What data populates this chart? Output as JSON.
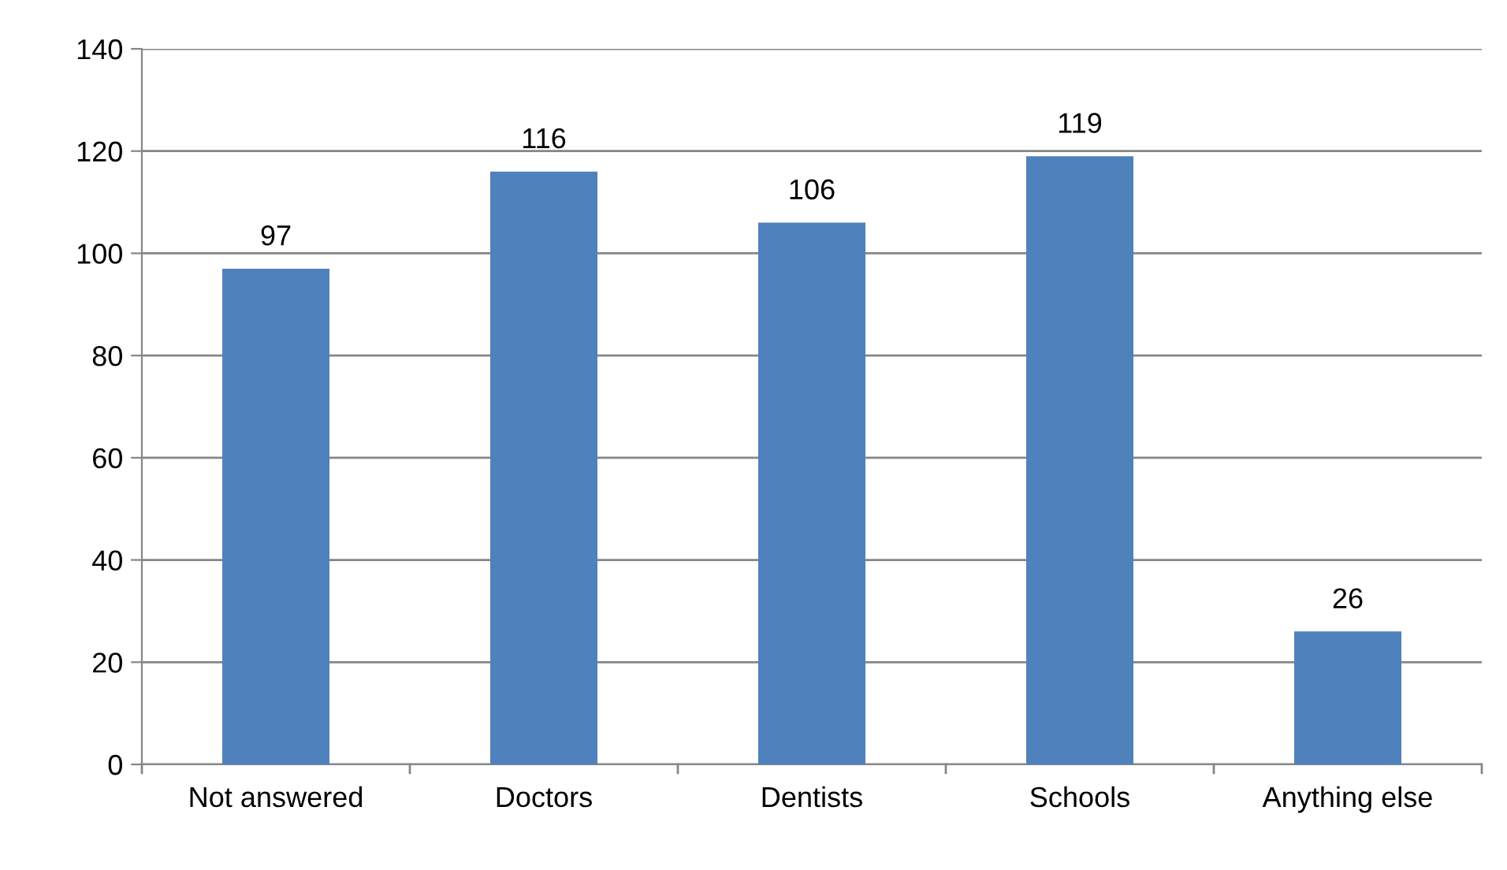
{
  "chart_data": {
    "type": "bar",
    "categories": [
      "Not answered",
      "Doctors",
      "Dentists",
      "Schools",
      "Anything else"
    ],
    "values": [
      97,
      116,
      106,
      119,
      26
    ],
    "color": "#4f81bd",
    "ylim": [
      0,
      140
    ],
    "yticks": [
      0,
      20,
      40,
      60,
      80,
      100,
      120,
      140
    ],
    "grid": "y",
    "data_labels": true,
    "legend": false
  }
}
